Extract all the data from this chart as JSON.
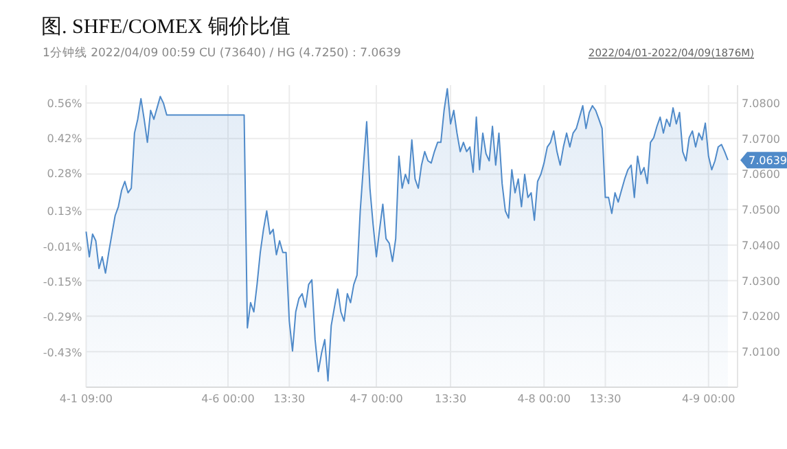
{
  "chart_data": {
    "type": "area",
    "title": "图. SHFE/COMEX 铜价比值",
    "subtitle": "1分钟线 2022/04/09 00:59 CU (73640) / HG (4.7250) : 7.0639",
    "annotations": [
      "2022/04/01-2022/04/09(1876M)",
      "7.0639"
    ],
    "categories": [
      "4-1 09:00",
      null,
      null,
      null,
      null,
      null,
      null,
      null,
      null,
      null,
      null,
      null,
      null,
      null,
      null,
      null,
      null,
      null,
      null,
      null,
      null,
      null,
      null,
      null,
      null,
      null,
      null,
      null,
      null,
      null,
      null,
      null,
      null,
      null,
      null,
      null,
      null,
      null,
      null,
      null,
      null,
      null,
      null,
      null,
      "4-6 00:00",
      null,
      null,
      null,
      null,
      null,
      null,
      null,
      null,
      null,
      null,
      null,
      null,
      null,
      null,
      null,
      null,
      null,
      null,
      "13:30",
      null,
      null,
      null,
      null,
      null,
      null,
      null,
      null,
      null,
      null,
      null,
      null,
      null,
      null,
      null,
      null,
      null,
      null,
      null,
      null,
      null,
      null,
      null,
      null,
      null,
      null,
      "4-7 00:00",
      null,
      null,
      null,
      null,
      null,
      null,
      null,
      null,
      null,
      null,
      null,
      null,
      null,
      null,
      null,
      null,
      null,
      null,
      null,
      null,
      null,
      null,
      "13:30",
      null,
      null,
      null,
      null,
      null,
      null,
      null,
      null,
      null,
      null,
      null,
      null,
      null,
      null,
      null,
      null,
      null,
      null,
      null,
      null,
      null,
      null,
      null,
      null,
      null,
      null,
      null,
      null,
      "4-8 00:00",
      null,
      null,
      null,
      null,
      null,
      null,
      null,
      null,
      null,
      null,
      null,
      null,
      null,
      null,
      null,
      null,
      null,
      null,
      "13:30",
      null,
      null,
      null,
      null,
      null,
      null,
      null,
      null,
      null,
      null,
      null,
      null,
      null,
      null,
      null,
      null,
      null,
      null,
      null,
      null,
      null,
      null,
      null,
      null,
      null,
      null,
      null,
      null,
      null,
      null,
      null,
      "4-9 00:00",
      null,
      null,
      null,
      null,
      null,
      null,
      null,
      null,
      null
    ],
    "series": [
      {
        "color": "#4f8ac9",
        "axis": "y2",
        "values": [
          7.0438,
          7.0367,
          7.0431,
          7.0412,
          7.0334,
          7.0367,
          7.0321,
          7.0379,
          7.0431,
          7.0483,
          7.0508,
          7.0554,
          7.0579,
          7.0547,
          7.056,
          7.0715,
          7.0754,
          7.0812,
          7.0754,
          7.0689,
          7.0779,
          7.0754,
          7.0786,
          7.0818,
          7.0799,
          7.0766,
          7.0766,
          7.0766,
          7.0766,
          7.0766,
          7.0766,
          7.0766,
          7.0766,
          7.0766,
          7.0766,
          7.0766,
          7.0766,
          7.0766,
          7.0766,
          7.0766,
          7.0766,
          7.0766,
          7.0766,
          7.0766,
          7.0766,
          7.0766,
          7.0766,
          7.0766,
          7.0766,
          7.0766,
          7.0167,
          7.0238,
          7.0212,
          7.0289,
          7.0379,
          7.0444,
          7.0496,
          7.0431,
          7.0444,
          7.0373,
          7.0412,
          7.0379,
          7.0379,
          7.0186,
          7.0102,
          7.0212,
          7.025,
          7.0263,
          7.0225,
          7.0289,
          7.0302,
          7.0134,
          7.0044,
          7.0096,
          7.0134,
          7.0018,
          7.0173,
          7.0225,
          7.0276,
          7.0212,
          7.0186,
          7.0263,
          7.0238,
          7.0289,
          7.0315,
          7.0496,
          7.0625,
          7.0747,
          7.056,
          7.0457,
          7.0367,
          7.0444,
          7.0515,
          7.0418,
          7.0405,
          7.0354,
          7.0418,
          7.065,
          7.056,
          7.0599,
          7.0573,
          7.0696,
          7.0586,
          7.056,
          7.0625,
          7.0663,
          7.0637,
          7.0631,
          7.0663,
          7.0689,
          7.0689,
          7.0779,
          7.084,
          7.0741,
          7.0779,
          7.0715,
          7.0663,
          7.0689,
          7.0663,
          7.0676,
          7.0605,
          7.076,
          7.0612,
          7.0715,
          7.0657,
          7.0637,
          7.0734,
          7.0625,
          7.0715,
          7.0573,
          7.0496,
          7.0476,
          7.0612,
          7.0547,
          7.0586,
          7.0508,
          7.0599,
          7.0534,
          7.0547,
          7.047,
          7.0579,
          7.0599,
          7.0631,
          7.0676,
          7.0689,
          7.0721,
          7.0663,
          7.0625,
          7.0676,
          7.0715,
          7.0676,
          7.0715,
          7.0728,
          7.076,
          7.0792,
          7.0728,
          7.0773,
          7.0792,
          7.0779,
          7.0754,
          7.0728,
          7.0534,
          7.0534,
          7.0489,
          7.0547,
          7.0521,
          7.0554,
          7.0586,
          7.0612,
          7.0625,
          7.0534,
          7.065,
          7.0599,
          7.0618,
          7.0573,
          7.0689,
          7.0702,
          7.0734,
          7.076,
          7.0715,
          7.0754,
          7.0734,
          7.0786,
          7.0741,
          7.0773,
          7.0663,
          7.0637,
          7.0702,
          7.0721,
          7.0676,
          7.0715,
          7.0696,
          7.0743,
          7.065,
          7.0612,
          7.0637,
          7.0676,
          7.0683,
          7.0663,
          7.0639,
          null,
          null,
          null
        ]
      }
    ],
    "ylim": [
      -0.57,
      0.63
    ],
    "yticks": [
      {
        "value": 0.56,
        "label": "0.56%"
      },
      {
        "value": 0.42,
        "label": "0.42%"
      },
      {
        "value": 0.28,
        "label": "0.28%"
      },
      {
        "value": 0.13,
        "label": "0.13%"
      },
      {
        "value": -0.01,
        "label": "-0.01%"
      },
      {
        "value": -0.15,
        "label": "-0.15%"
      },
      {
        "value": -0.29,
        "label": "-0.29%"
      },
      {
        "value": -0.43,
        "label": "-0.43%"
      }
    ],
    "y2lim": [
      7.0,
      7.085
    ],
    "y2ticks": [
      {
        "value": 7.08,
        "label": "7.0800"
      },
      {
        "value": 7.07,
        "label": "7.0700"
      },
      {
        "value": 7.06,
        "label": "7.0600"
      },
      {
        "value": 7.05,
        "label": "7.0500"
      },
      {
        "value": 7.04,
        "label": "7.0400"
      },
      {
        "value": 7.03,
        "label": "7.0300"
      },
      {
        "value": 7.02,
        "label": "7.0200"
      },
      {
        "value": 7.01,
        "label": "7.0100"
      }
    ],
    "grid": true
  }
}
